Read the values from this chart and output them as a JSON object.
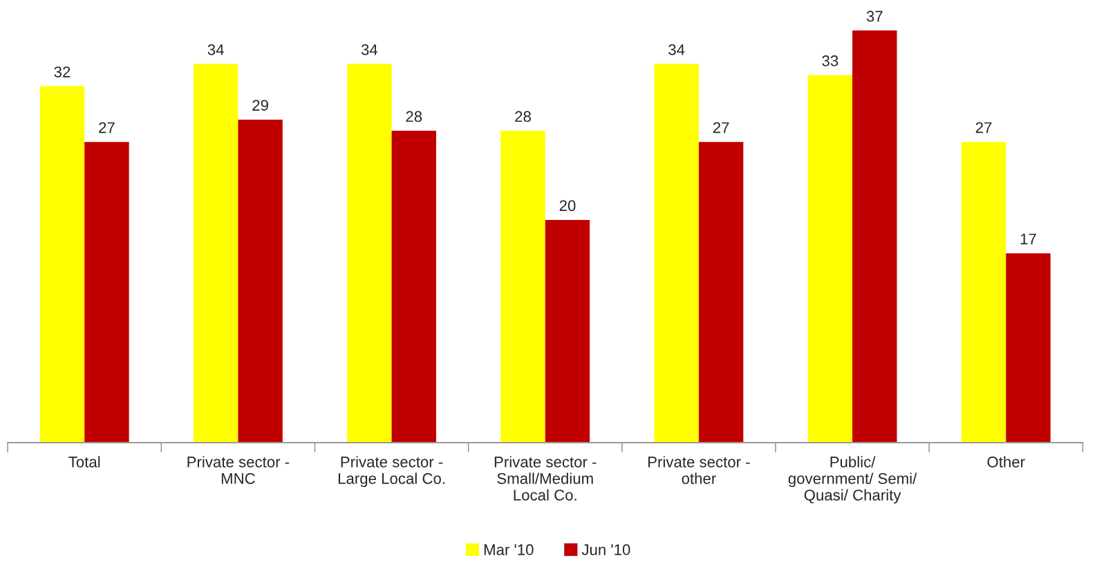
{
  "chart_data": {
    "type": "bar",
    "relative": false,
    "categories": [
      "Total",
      "Private sector -\nMNC",
      "Private sector -\nLarge Local Co.",
      "Private sector -\nSmall/Medium\nLocal Co.",
      "Private sector -\nother",
      "Public/\ngovernment/ Semi/\nQuasi/ Charity",
      "Other"
    ],
    "series": [
      {
        "name": "Mar '10",
        "color": "#ffff00",
        "values": [
          32,
          34,
          34,
          28,
          34,
          33,
          27
        ]
      },
      {
        "name": "Jun '10",
        "color": "#c00000",
        "values": [
          27,
          29,
          28,
          20,
          27,
          37,
          17
        ]
      }
    ],
    "data_labels": true,
    "legend": "bottom",
    "grid": false
  }
}
